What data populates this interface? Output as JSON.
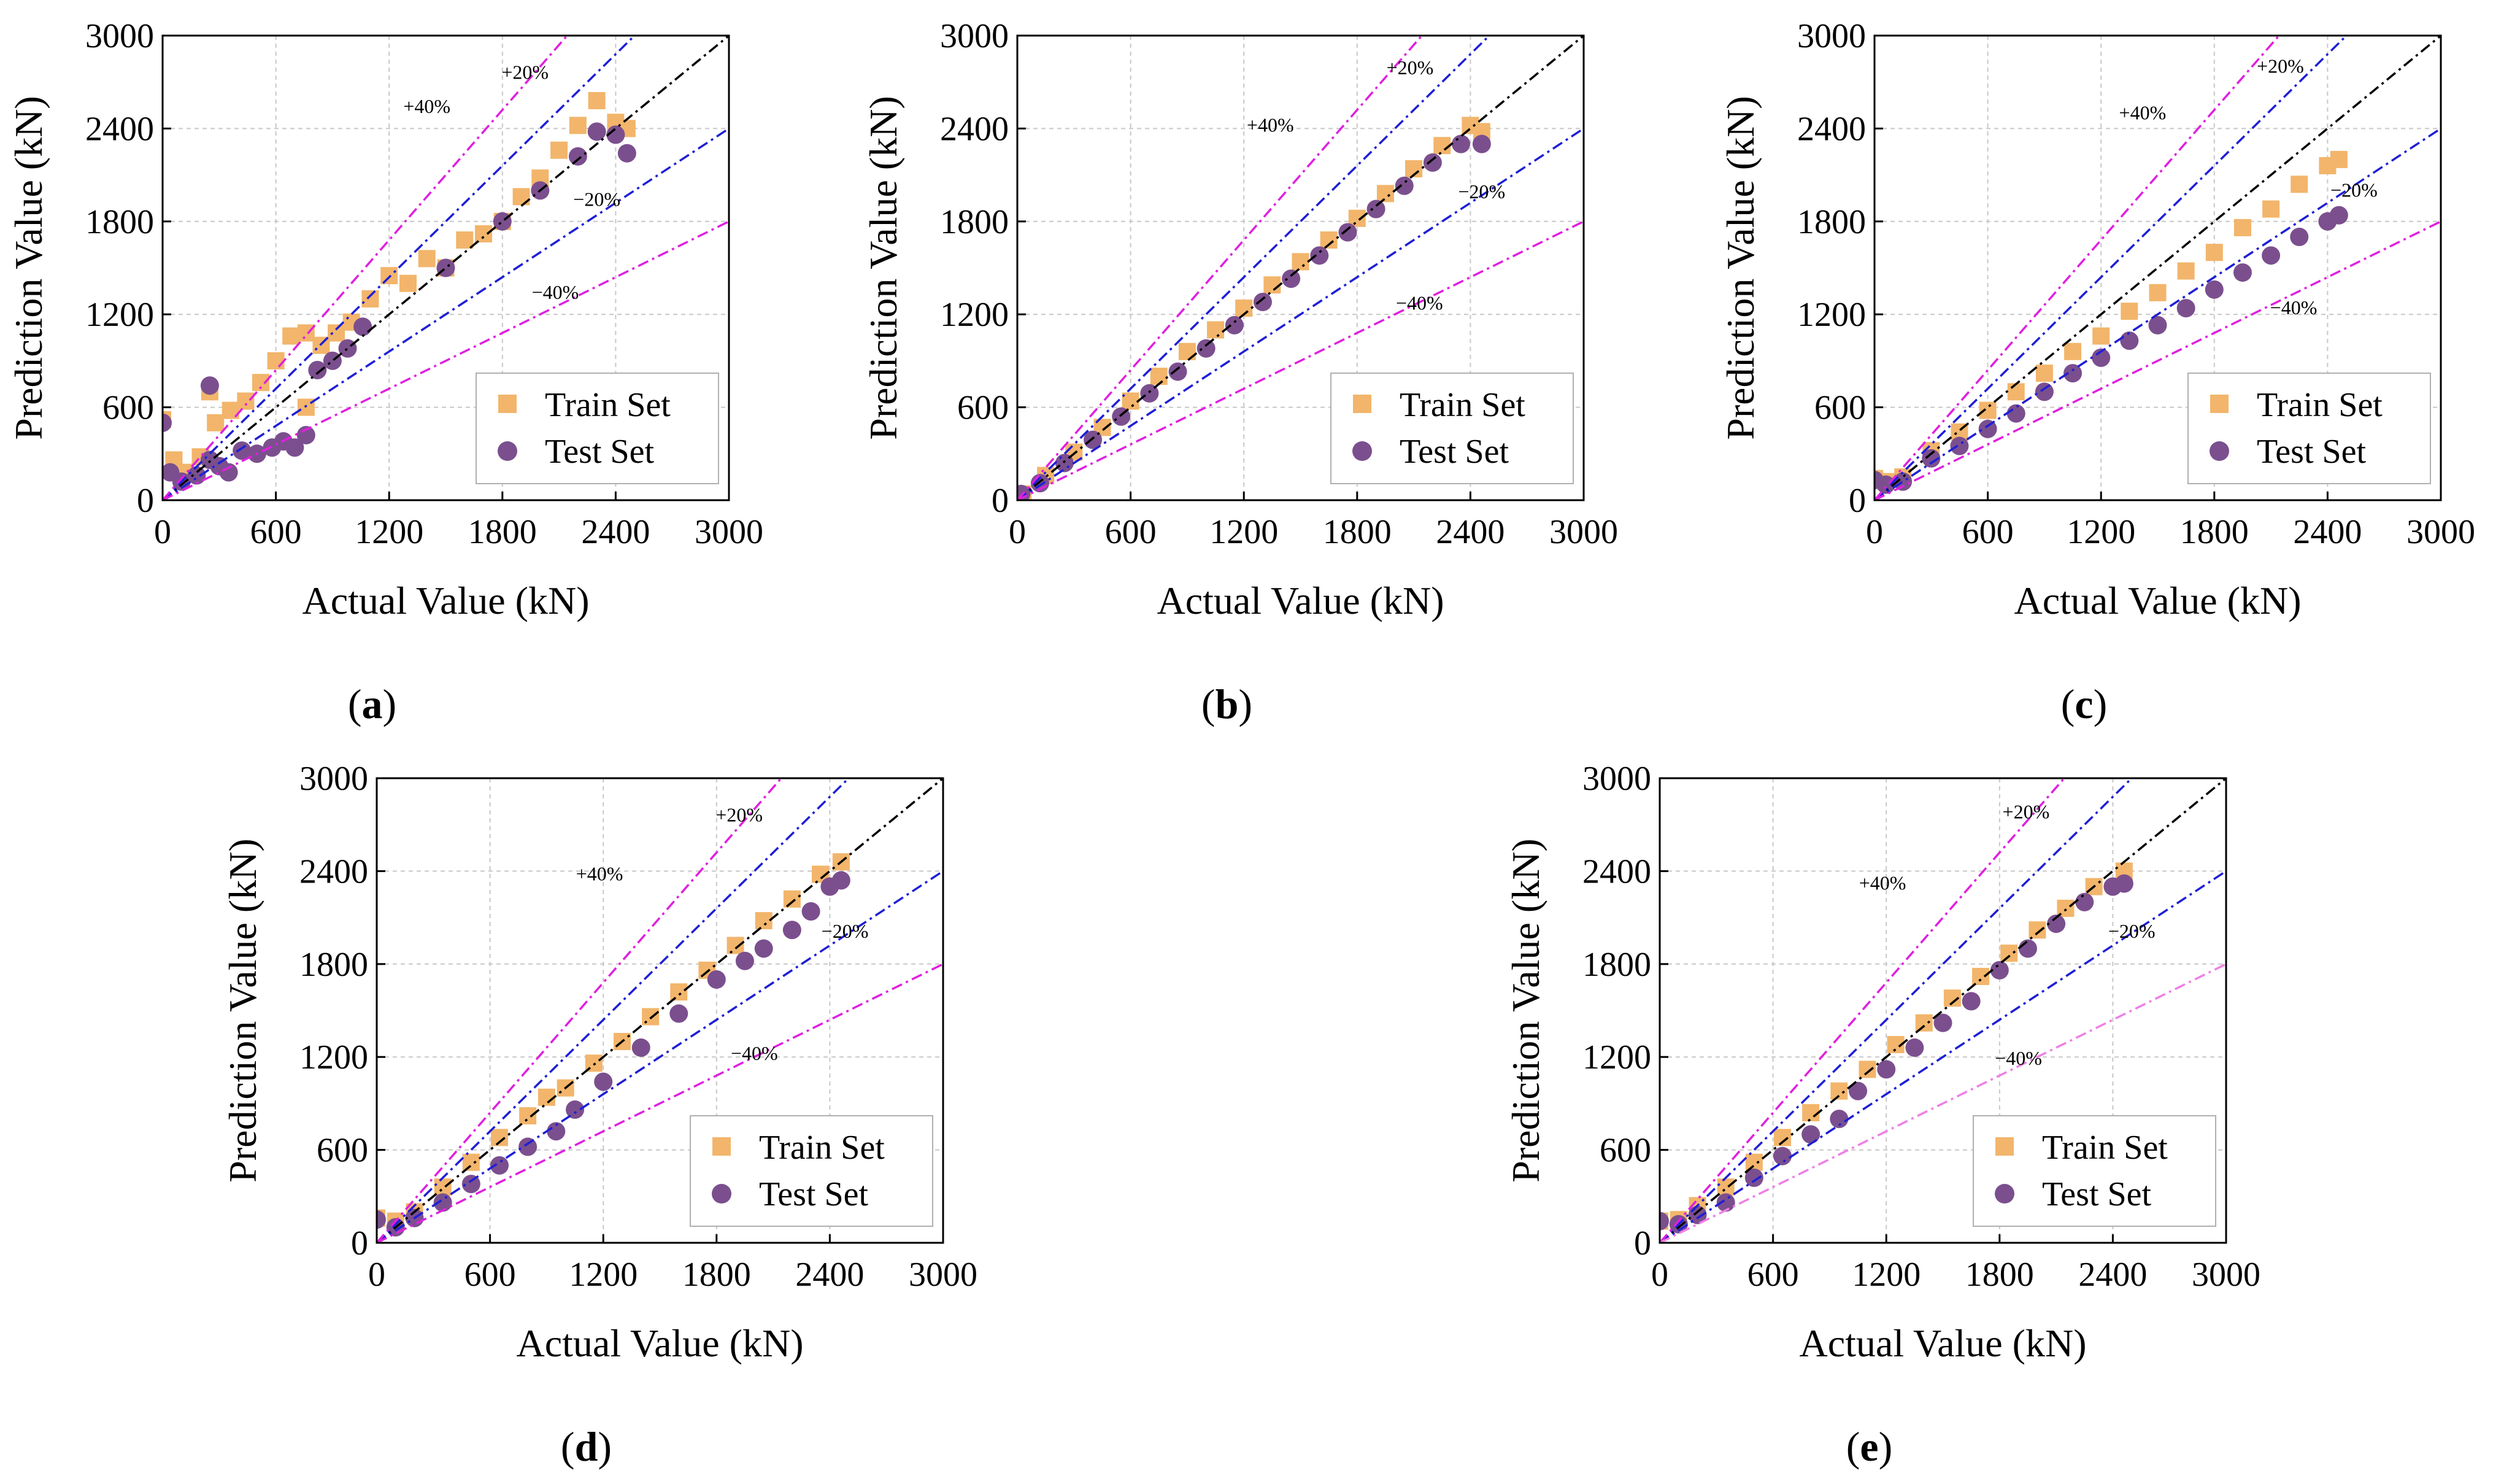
{
  "figure": {
    "panel_ids": [
      "a",
      "b",
      "c",
      "d",
      "e"
    ]
  },
  "colors": {
    "train": "#f2b56b",
    "test": "#7b4f8e",
    "ideal_line": "#000000",
    "band20": "#1f1fd6",
    "band40": "#e020e0",
    "band40_light": "#ef7fe6",
    "grid": "#c8c8c8",
    "axis": "#000000"
  },
  "chart_data": [
    {
      "id": "a",
      "type": "scatter",
      "panel_label": "a",
      "xlabel": "Actual Value (kN)",
      "ylabel": "Prediction Value (kN)",
      "xlim": [
        0,
        3000
      ],
      "ylim": [
        0,
        3000
      ],
      "xticks": [
        "0",
        "600",
        "1200",
        "1800",
        "2400",
        "3000"
      ],
      "yticks": [
        "0",
        "600",
        "1200",
        "1800",
        "2400",
        "3000"
      ],
      "grid": true,
      "legend": {
        "position": "bottom-right",
        "entries": [
          "Train Set",
          "Test Set"
        ]
      },
      "reference_lines": [
        {
          "name": "ideal",
          "slope": 1.0,
          "style": "black-dashdot"
        },
        {
          "name": "+20%",
          "slope": 1.2,
          "label": "+20%",
          "label_at": [
            1920,
            2720
          ]
        },
        {
          "name": "-20%",
          "slope": 0.8,
          "label": "−20%",
          "label_at": [
            2300,
            1900
          ]
        },
        {
          "name": "+40%",
          "slope": 1.4,
          "label": "+40%",
          "label_at": [
            1400,
            2500
          ]
        },
        {
          "name": "-40%",
          "slope": 0.6,
          "label": "−40%",
          "label_at": [
            2080,
            1300
          ]
        }
      ],
      "series": [
        {
          "name": "Train Set",
          "marker": "square",
          "x": [
            0,
            60,
            120,
            200,
            280,
            360,
            440,
            520,
            600,
            680,
            760,
            840,
            920,
            1000,
            1100,
            1200,
            1300,
            1400,
            1500,
            1600,
            1700,
            1800,
            1900,
            2000,
            2100,
            2200,
            2300,
            2400,
            2460,
            250,
            760
          ],
          "y": [
            520,
            260,
            180,
            280,
            500,
            580,
            640,
            760,
            900,
            1060,
            1080,
            1000,
            1080,
            1150,
            1300,
            1450,
            1400,
            1560,
            1500,
            1680,
            1720,
            1800,
            1960,
            2080,
            2260,
            2420,
            2580,
            2440,
            2400,
            700,
            600
          ]
        },
        {
          "name": "Test Set",
          "marker": "circle",
          "x": [
            0,
            40,
            100,
            180,
            250,
            300,
            350,
            420,
            500,
            580,
            640,
            700,
            760,
            820,
            900,
            980,
            1060,
            1500,
            1800,
            2000,
            2200,
            2300,
            2400,
            2460,
            250
          ],
          "y": [
            500,
            180,
            120,
            160,
            260,
            220,
            180,
            320,
            300,
            340,
            380,
            340,
            420,
            840,
            900,
            980,
            1120,
            1500,
            1800,
            2000,
            2220,
            2380,
            2360,
            2240,
            740
          ]
        }
      ]
    },
    {
      "id": "b",
      "type": "scatter",
      "panel_label": "b",
      "xlabel": "Actual Value (kN)",
      "ylabel": "Prediction Value (kN)",
      "xlim": [
        0,
        3000
      ],
      "ylim": [
        0,
        3000
      ],
      "xticks": [
        "0",
        "600",
        "1200",
        "1800",
        "2400",
        "3000"
      ],
      "yticks": [
        "0",
        "600",
        "1200",
        "1800",
        "2400",
        "3000"
      ],
      "grid": true,
      "legend": {
        "position": "bottom-right",
        "entries": [
          "Train Set",
          "Test Set"
        ]
      },
      "reference_lines": [
        {
          "name": "ideal",
          "slope": 1.0,
          "style": "black-dashdot"
        },
        {
          "name": "+20%",
          "slope": 1.2,
          "label": "+20%",
          "label_at": [
            2080,
            2750
          ]
        },
        {
          "name": "-20%",
          "slope": 0.8,
          "label": "−20%",
          "label_at": [
            2460,
            1950
          ]
        },
        {
          "name": "+40%",
          "slope": 1.4,
          "label": "+40%",
          "label_at": [
            1340,
            2380
          ]
        },
        {
          "name": "-40%",
          "slope": 0.6,
          "label": "−40%",
          "label_at": [
            2130,
            1230
          ]
        }
      ],
      "series": [
        {
          "name": "Train Set",
          "marker": "square",
          "x": [
            30,
            150,
            300,
            450,
            600,
            750,
            900,
            1050,
            1200,
            1350,
            1500,
            1650,
            1800,
            1950,
            2100,
            2250,
            2400,
            2460
          ],
          "y": [
            40,
            160,
            310,
            470,
            640,
            800,
            960,
            1100,
            1240,
            1390,
            1540,
            1680,
            1820,
            1980,
            2140,
            2290,
            2420,
            2380
          ]
        },
        {
          "name": "Test Set",
          "marker": "circle",
          "x": [
            20,
            120,
            250,
            400,
            550,
            700,
            850,
            1000,
            1150,
            1300,
            1450,
            1600,
            1750,
            1900,
            2050,
            2200,
            2350,
            2460
          ],
          "y": [
            40,
            110,
            240,
            390,
            540,
            690,
            830,
            980,
            1130,
            1280,
            1430,
            1580,
            1730,
            1880,
            2030,
            2180,
            2300,
            2300
          ]
        }
      ]
    },
    {
      "id": "c",
      "type": "scatter",
      "panel_label": "c",
      "xlabel": "Actual Value (kN)",
      "ylabel": "Prediction Value (kN)",
      "xlim": [
        0,
        3000
      ],
      "ylim": [
        0,
        3000
      ],
      "xticks": [
        "0",
        "600",
        "1200",
        "1800",
        "2400",
        "3000"
      ],
      "yticks": [
        "0",
        "600",
        "1200",
        "1800",
        "2400",
        "3000"
      ],
      "grid": true,
      "legend": {
        "position": "bottom-right",
        "entries": [
          "Train Set",
          "Test Set"
        ]
      },
      "reference_lines": [
        {
          "name": "ideal",
          "slope": 1.0,
          "style": "black-dashdot"
        },
        {
          "name": "+20%",
          "slope": 1.2,
          "label": "+20%",
          "label_at": [
            2150,
            2760
          ]
        },
        {
          "name": "-20%",
          "slope": 0.8,
          "label": "−20%",
          "label_at": [
            2540,
            1960
          ]
        },
        {
          "name": "+40%",
          "slope": 1.4,
          "label": "+40%",
          "label_at": [
            1420,
            2460
          ]
        },
        {
          "name": "-40%",
          "slope": 0.6,
          "label": "−40%",
          "label_at": [
            2220,
            1200
          ]
        }
      ],
      "series": [
        {
          "name": "Train Set",
          "marker": "square",
          "x": [
            0,
            60,
            150,
            300,
            450,
            600,
            750,
            900,
            1050,
            1200,
            1350,
            1500,
            1650,
            1800,
            1950,
            2100,
            2250,
            2400,
            2460
          ],
          "y": [
            140,
            120,
            150,
            320,
            440,
            580,
            700,
            820,
            960,
            1060,
            1220,
            1340,
            1480,
            1600,
            1760,
            1880,
            2040,
            2160,
            2200
          ]
        },
        {
          "name": "Test Set",
          "marker": "circle",
          "x": [
            0,
            60,
            150,
            300,
            450,
            600,
            750,
            900,
            1050,
            1200,
            1350,
            1500,
            1650,
            1800,
            1950,
            2100,
            2250,
            2400,
            2460
          ],
          "y": [
            130,
            100,
            120,
            270,
            350,
            460,
            560,
            700,
            820,
            920,
            1030,
            1130,
            1240,
            1360,
            1470,
            1580,
            1700,
            1800,
            1840
          ]
        }
      ]
    },
    {
      "id": "d",
      "type": "scatter",
      "panel_label": "d",
      "xlabel": "Actual Value (kN)",
      "ylabel": "Prediction Value (kN)",
      "xlim": [
        0,
        3000
      ],
      "ylim": [
        0,
        3000
      ],
      "xticks": [
        "0",
        "600",
        "1200",
        "1800",
        "2400",
        "3000"
      ],
      "yticks": [
        "0",
        "600",
        "1200",
        "1800",
        "2400",
        "3000"
      ],
      "grid": true,
      "legend": {
        "position": "bottom-right",
        "entries": [
          "Train Set",
          "Test Set"
        ]
      },
      "reference_lines": [
        {
          "name": "ideal",
          "slope": 1.0,
          "style": "black-dashdot"
        },
        {
          "name": "+20%",
          "slope": 1.2,
          "label": "+20%",
          "label_at": [
            1920,
            2720
          ]
        },
        {
          "name": "-20%",
          "slope": 0.8,
          "label": "−20%",
          "label_at": [
            2480,
            1970
          ]
        },
        {
          "name": "+40%",
          "slope": 1.4,
          "label": "+40%",
          "label_at": [
            1180,
            2340
          ]
        },
        {
          "name": "-40%",
          "slope": 0.6,
          "label": "−40%",
          "label_at": [
            2000,
            1180
          ]
        }
      ],
      "series": [
        {
          "name": "Train Set",
          "marker": "square",
          "x": [
            0,
            100,
            200,
            350,
            500,
            650,
            800,
            900,
            1000,
            1150,
            1300,
            1450,
            1600,
            1750,
            1900,
            2050,
            2200,
            2350,
            2460
          ],
          "y": [
            160,
            140,
            200,
            360,
            520,
            680,
            820,
            940,
            1000,
            1160,
            1300,
            1460,
            1620,
            1760,
            1920,
            2080,
            2220,
            2380,
            2460
          ]
        },
        {
          "name": "Test Set",
          "marker": "circle",
          "x": [
            0,
            100,
            200,
            350,
            500,
            650,
            800,
            950,
            1050,
            1200,
            1400,
            1600,
            1800,
            1950,
            2050,
            2200,
            2300,
            2400,
            2460
          ],
          "y": [
            150,
            100,
            160,
            260,
            380,
            500,
            620,
            720,
            860,
            1040,
            1260,
            1480,
            1700,
            1820,
            1900,
            2020,
            2140,
            2300,
            2340
          ]
        }
      ]
    },
    {
      "id": "e",
      "type": "scatter",
      "panel_label": "e",
      "xlabel": "Actual Value (kN)",
      "ylabel": "Prediction Value (kN)",
      "xlim": [
        0,
        3000
      ],
      "ylim": [
        0,
        3000
      ],
      "xticks": [
        "0",
        "600",
        "1200",
        "1800",
        "2400",
        "3000"
      ],
      "yticks": [
        "0",
        "600",
        "1200",
        "1800",
        "2400",
        "3000"
      ],
      "grid": true,
      "legend": {
        "position": "bottom-right",
        "entries": [
          "Train Set",
          "Test Set"
        ]
      },
      "reference_lines": [
        {
          "name": "ideal",
          "slope": 1.0,
          "style": "black-dashdot"
        },
        {
          "name": "+20%",
          "slope": 1.2,
          "label": "+20%",
          "label_at": [
            1940,
            2740
          ]
        },
        {
          "name": "-20%",
          "slope": 0.8,
          "label": "−20%",
          "label_at": [
            2500,
            1970
          ]
        },
        {
          "name": "+40%",
          "slope": 1.4,
          "label": "+40%",
          "label_at": [
            1180,
            2280
          ]
        },
        {
          "name": "-40%",
          "slope": 0.6,
          "label": "−40%",
          "label_at": [
            1900,
            1150
          ]
        }
      ],
      "series": [
        {
          "name": "Train Set",
          "marker": "square",
          "x": [
            0,
            100,
            200,
            350,
            500,
            650,
            800,
            950,
            1100,
            1250,
            1400,
            1550,
            1700,
            1850,
            2000,
            2150,
            2300,
            2460
          ],
          "y": [
            140,
            150,
            240,
            360,
            520,
            680,
            840,
            980,
            1120,
            1280,
            1420,
            1580,
            1720,
            1870,
            2020,
            2160,
            2300,
            2400
          ]
        },
        {
          "name": "Test Set",
          "marker": "circle",
          "x": [
            0,
            100,
            200,
            350,
            500,
            650,
            800,
            950,
            1050,
            1200,
            1350,
            1500,
            1650,
            1800,
            1950,
            2100,
            2250,
            2400,
            2460
          ],
          "y": [
            140,
            120,
            180,
            260,
            420,
            560,
            700,
            800,
            980,
            1120,
            1260,
            1420,
            1560,
            1760,
            1900,
            2060,
            2200,
            2300,
            2320
          ]
        }
      ]
    }
  ]
}
